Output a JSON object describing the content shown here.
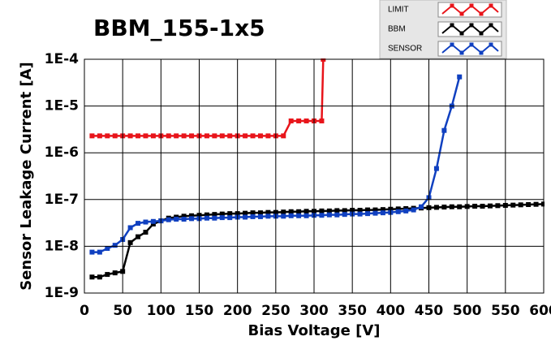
{
  "chart_data": {
    "type": "line",
    "title": "BBM_155-1x5",
    "x_label": "Bias Voltage [V]",
    "y_label": "Sensor Leakage Current [A]",
    "log_y": true,
    "grid": true,
    "xlim": [
      0,
      600
    ],
    "xticks": [
      0,
      50,
      100,
      150,
      200,
      250,
      300,
      350,
      400,
      450,
      500,
      550,
      600
    ],
    "ylim": [
      1e-09,
      0.0001
    ],
    "yticks": [
      {
        "value": 1e-09,
        "label": "1E-9"
      },
      {
        "value": 1e-08,
        "label": "1E-8"
      },
      {
        "value": 1e-07,
        "label": "1E-7"
      },
      {
        "value": 1e-06,
        "label": "1E-6"
      },
      {
        "value": 1e-05,
        "label": "1E-5"
      },
      {
        "value": 0.0001,
        "label": "1E-4"
      }
    ],
    "series": [
      {
        "name": "LIMIT",
        "color": "#e8141a",
        "x": [
          10,
          20,
          30,
          40,
          50,
          60,
          70,
          80,
          90,
          100,
          110,
          120,
          130,
          140,
          150,
          160,
          170,
          180,
          190,
          200,
          210,
          220,
          230,
          240,
          250,
          260,
          270,
          280,
          290,
          300,
          310,
          312
        ],
        "values": [
          2.3e-06,
          2.3e-06,
          2.3e-06,
          2.3e-06,
          2.3e-06,
          2.3e-06,
          2.3e-06,
          2.3e-06,
          2.3e-06,
          2.3e-06,
          2.3e-06,
          2.3e-06,
          2.3e-06,
          2.3e-06,
          2.3e-06,
          2.3e-06,
          2.3e-06,
          2.3e-06,
          2.3e-06,
          2.3e-06,
          2.3e-06,
          2.3e-06,
          2.3e-06,
          2.3e-06,
          2.3e-06,
          2.3e-06,
          4.8e-06,
          4.8e-06,
          4.8e-06,
          4.8e-06,
          4.8e-06,
          0.0001
        ]
      },
      {
        "name": "BBM",
        "color": "#000000",
        "x": [
          10,
          20,
          30,
          40,
          50,
          60,
          70,
          80,
          90,
          100,
          110,
          120,
          130,
          140,
          150,
          160,
          170,
          180,
          190,
          200,
          210,
          220,
          230,
          240,
          250,
          260,
          270,
          280,
          290,
          300,
          310,
          320,
          330,
          340,
          350,
          360,
          370,
          380,
          390,
          400,
          410,
          420,
          430,
          440,
          450,
          460,
          470,
          480,
          490,
          500,
          510,
          520,
          530,
          540,
          550,
          560,
          570,
          580,
          590,
          600
        ],
        "values": [
          2.2e-09,
          2.2e-09,
          2.5e-09,
          2.7e-09,
          2.9e-09,
          1.2e-08,
          1.6e-08,
          2e-08,
          3e-08,
          3.5e-08,
          4e-08,
          4.2e-08,
          4.4e-08,
          4.5e-08,
          4.6e-08,
          4.7e-08,
          4.8e-08,
          4.9e-08,
          5e-08,
          5e-08,
          5.1e-08,
          5.2e-08,
          5.2e-08,
          5.3e-08,
          5.3e-08,
          5.4e-08,
          5.5e-08,
          5.5e-08,
          5.6e-08,
          5.6e-08,
          5.7e-08,
          5.7e-08,
          5.8e-08,
          5.8e-08,
          5.9e-08,
          5.9e-08,
          6e-08,
          6e-08,
          6.1e-08,
          6.2e-08,
          6.3e-08,
          6.4e-08,
          6.5e-08,
          6.6e-08,
          6.7e-08,
          6.8e-08,
          6.9e-08,
          7e-08,
          7e-08,
          7.1e-08,
          7.2e-08,
          7.2e-08,
          7.3e-08,
          7.4e-08,
          7.5e-08,
          7.6e-08,
          7.7e-08,
          7.8e-08,
          7.9e-08,
          8e-08
        ]
      },
      {
        "name": "SENSOR",
        "color": "#1040c0",
        "x": [
          10,
          20,
          30,
          40,
          50,
          60,
          70,
          80,
          90,
          100,
          110,
          120,
          130,
          140,
          150,
          160,
          170,
          180,
          190,
          200,
          210,
          220,
          230,
          240,
          250,
          260,
          270,
          280,
          290,
          300,
          310,
          320,
          330,
          340,
          350,
          360,
          370,
          380,
          390,
          400,
          410,
          420,
          430,
          440,
          450,
          460,
          470,
          480,
          490
        ],
        "values": [
          7.5e-09,
          7.5e-09,
          9e-09,
          1.05e-08,
          1.4e-08,
          2.5e-08,
          3.1e-08,
          3.3e-08,
          3.4e-08,
          3.5e-08,
          3.7e-08,
          3.8e-08,
          3.8e-08,
          3.9e-08,
          3.9e-08,
          4e-08,
          4e-08,
          4.1e-08,
          4.1e-08,
          4.2e-08,
          4.2e-08,
          4.3e-08,
          4.3e-08,
          4.4e-08,
          4.4e-08,
          4.4e-08,
          4.5e-08,
          4.5e-08,
          4.5e-08,
          4.6e-08,
          4.6e-08,
          4.7e-08,
          4.7e-08,
          4.8e-08,
          4.9e-08,
          4.9e-08,
          5e-08,
          5.1e-08,
          5.2e-08,
          5.3e-08,
          5.5e-08,
          5.7e-08,
          6e-08,
          7e-08,
          1.1e-07,
          4.6e-07,
          3e-06,
          1e-05,
          4.2e-05
        ]
      }
    ]
  }
}
